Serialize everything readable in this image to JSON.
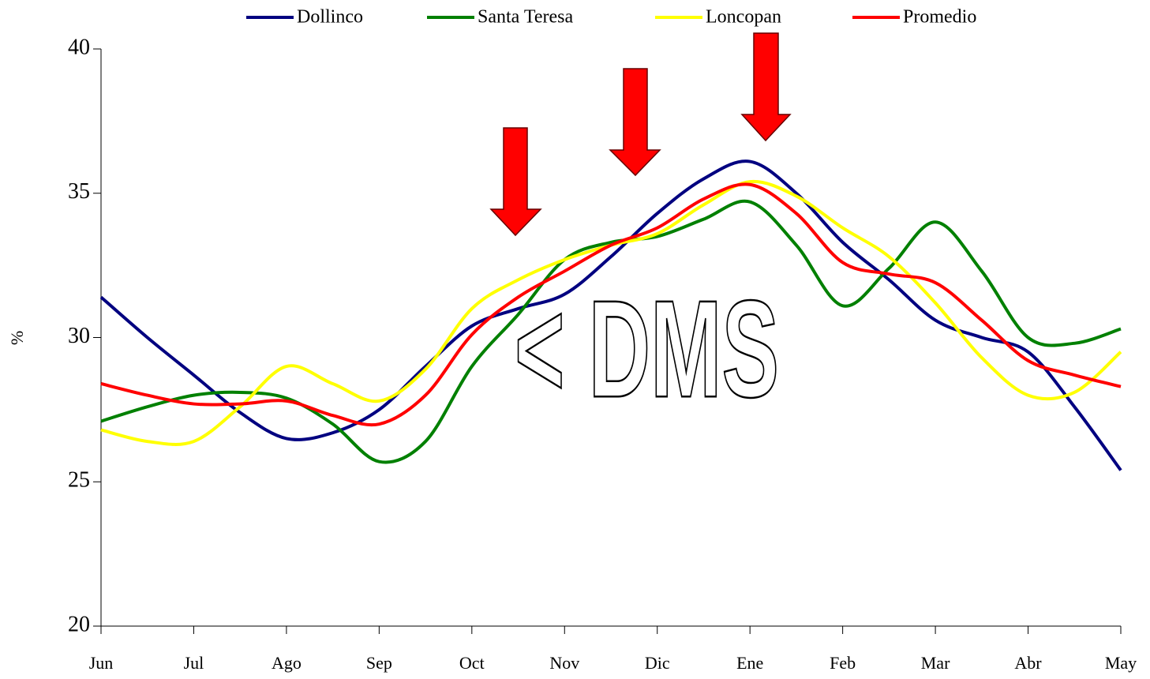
{
  "chart_data": {
    "type": "line",
    "y_label": "%",
    "annotation": "< DMS",
    "categories": [
      "Jun",
      null,
      "Jul",
      null,
      "Ago",
      null,
      "Sep",
      null,
      "Oct",
      null,
      "Nov",
      null,
      "Dic",
      null,
      "Ene",
      null,
      "Feb",
      null,
      "Mar",
      null,
      "Abr",
      null,
      "May"
    ],
    "series": [
      {
        "name": "Dollinco",
        "color": "#000080",
        "values": [
          31.4,
          30.0,
          28.7,
          27.4,
          26.5,
          26.7,
          27.5,
          29.0,
          30.4,
          31.0,
          31.5,
          32.8,
          34.3,
          35.5,
          36.1,
          35.0,
          33.3,
          32.0,
          30.6,
          30.0,
          29.5,
          27.6,
          25.4
        ]
      },
      {
        "name": "Santa Teresa",
        "color": "#008000",
        "values": [
          27.1,
          27.6,
          28.0,
          28.1,
          27.9,
          27.0,
          25.7,
          26.4,
          29.0,
          30.8,
          32.7,
          33.3,
          33.5,
          34.1,
          34.7,
          33.2,
          31.1,
          32.4,
          34.0,
          32.3,
          30.0,
          29.8,
          30.3
        ]
      },
      {
        "name": "Loncopan",
        "color": "#ffff00",
        "values": [
          26.8,
          26.4,
          26.4,
          27.6,
          29.0,
          28.4,
          27.8,
          28.9,
          31.0,
          32.0,
          32.7,
          33.2,
          33.6,
          34.6,
          35.4,
          34.9,
          33.8,
          32.8,
          31.2,
          29.3,
          28.0,
          28.1,
          29.5
        ]
      },
      {
        "name": "Promedio",
        "color": "#ff0000",
        "values": [
          28.4,
          28.0,
          27.7,
          27.7,
          27.8,
          27.3,
          27.0,
          28.0,
          30.1,
          31.4,
          32.3,
          33.2,
          33.8,
          34.8,
          35.3,
          34.3,
          32.6,
          32.2,
          31.9,
          30.6,
          29.2,
          28.7,
          28.3
        ]
      }
    ],
    "ylim": [
      20,
      40
    ],
    "yticks": [
      20,
      25,
      30,
      35,
      40
    ]
  }
}
